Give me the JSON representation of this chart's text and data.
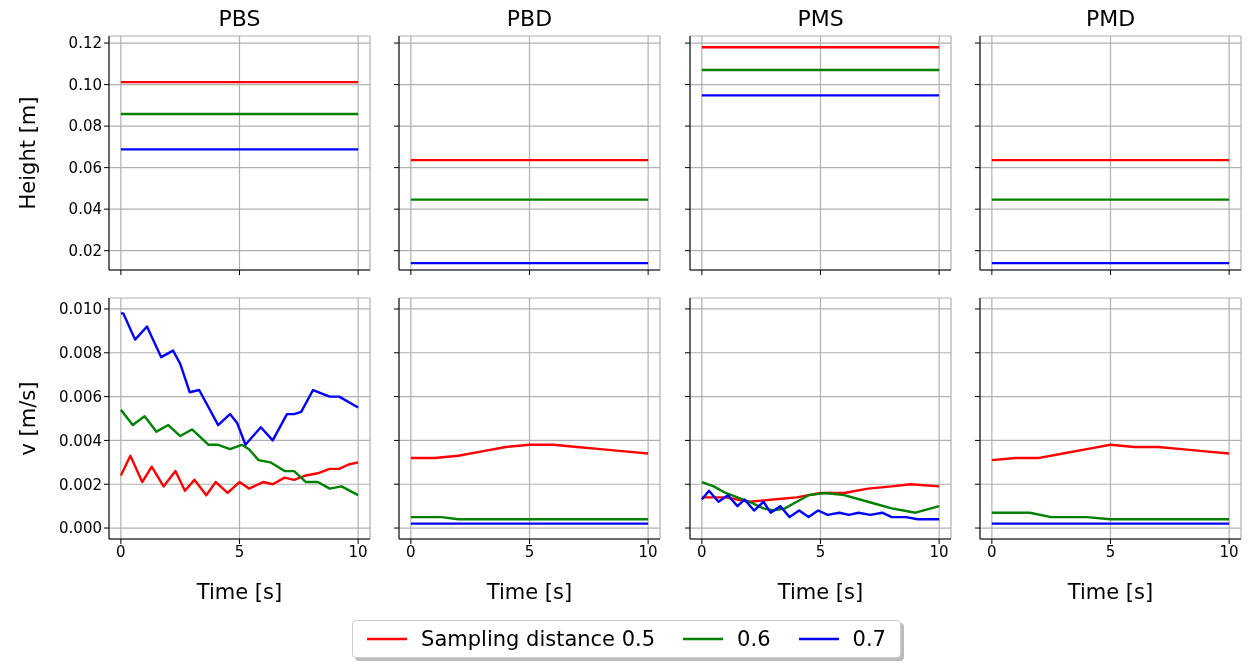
{
  "chart_data": [
    {
      "type": "line",
      "title": "PBS",
      "ylabel": "Height [m]",
      "xlim": [
        -0.5,
        10.5
      ],
      "xticks": [
        0,
        5,
        10
      ],
      "ylim": [
        0.0107,
        0.1234
      ],
      "yticks": [
        0.02,
        0.04,
        0.06,
        0.08,
        {
          "value": 0.1,
          "label": "0.10"
        },
        0.12
      ],
      "grid": true,
      "tick_labels": "y",
      "legend": "bottom",
      "series": [
        {
          "name": "Sampling distance 0.5",
          "color": "#ff0000",
          "x": [
            0,
            2.5,
            5,
            7.5,
            10
          ],
          "values": [
            0.1012,
            0.1012,
            0.1012,
            0.1012,
            0.1012
          ]
        },
        {
          "name": "0.6",
          "color": "#008000",
          "x": [
            0,
            2.5,
            5,
            7.5,
            10
          ],
          "values": [
            0.0858,
            0.0858,
            0.0858,
            0.0858,
            0.0858
          ]
        },
        {
          "name": "0.7",
          "color": "#0000ff",
          "x": [
            0,
            2.5,
            5,
            7.5,
            10
          ],
          "values": [
            0.0688,
            0.0688,
            0.0688,
            0.0688,
            0.0688
          ]
        }
      ]
    },
    {
      "type": "line",
      "title": "PBD",
      "xlim": [
        -0.5,
        10.5
      ],
      "xticks": [
        0,
        5,
        10
      ],
      "ylim": [
        0.0107,
        0.1234
      ],
      "yticks": [
        0.02,
        0.04,
        0.06,
        0.08,
        0.1,
        0.12
      ],
      "grid": true,
      "tick_labels": false,
      "series": [
        {
          "color": "#ff0000",
          "x": [
            0,
            5,
            10
          ],
          "values": [
            0.0636,
            0.0636,
            0.0636
          ]
        },
        {
          "color": "#008000",
          "x": [
            0,
            5,
            10
          ],
          "values": [
            0.0446,
            0.0446,
            0.0446
          ]
        },
        {
          "color": "#0000ff",
          "x": [
            0,
            5,
            10
          ],
          "values": [
            0.014,
            0.014,
            0.014
          ]
        }
      ]
    },
    {
      "type": "line",
      "title": "PMS",
      "xlim": [
        -0.5,
        10.5
      ],
      "xticks": [
        0,
        5,
        10
      ],
      "ylim": [
        0.0107,
        0.1234
      ],
      "yticks": [
        0.02,
        0.04,
        0.06,
        0.08,
        0.1,
        0.12
      ],
      "grid": true,
      "tick_labels": false,
      "series": [
        {
          "color": "#ff0000",
          "x": [
            0,
            5,
            10
          ],
          "values": [
            0.118,
            0.118,
            0.118
          ]
        },
        {
          "color": "#008000",
          "x": [
            0,
            5,
            10
          ],
          "values": [
            0.107,
            0.107,
            0.107
          ]
        },
        {
          "color": "#0000ff",
          "x": [
            0,
            5,
            10
          ],
          "values": [
            0.0948,
            0.0948,
            0.0948
          ]
        }
      ]
    },
    {
      "type": "line",
      "title": "PMD",
      "xlim": [
        -0.5,
        10.5
      ],
      "xticks": [
        0,
        5,
        10
      ],
      "ylim": [
        0.0107,
        0.1234
      ],
      "yticks": [
        0.02,
        0.04,
        0.06,
        0.08,
        0.1,
        0.12
      ],
      "grid": true,
      "tick_labels": false,
      "series": [
        {
          "color": "#ff0000",
          "x": [
            0,
            5,
            10
          ],
          "values": [
            0.0636,
            0.0636,
            0.0636
          ]
        },
        {
          "color": "#008000",
          "x": [
            0,
            5,
            10
          ],
          "values": [
            0.0446,
            0.0446,
            0.0446
          ]
        },
        {
          "color": "#0000ff",
          "x": [
            0,
            5,
            10
          ],
          "values": [
            0.014,
            0.014,
            0.014
          ]
        }
      ]
    },
    {
      "type": "line",
      "xlabel": "Time [s]",
      "ylabel": "v [m/s]",
      "xlim": [
        -0.5,
        10.5
      ],
      "xticks": [
        0,
        5,
        10
      ],
      "ylim": [
        -0.0005,
        0.0105
      ],
      "yticks": [
        {
          "value": 0,
          "label": "0.000"
        },
        0.002,
        0.004,
        0.006,
        0.008,
        {
          "value": 0.01,
          "label": "0.010"
        }
      ],
      "grid": true,
      "series": [
        {
          "color": "#ff0000",
          "x": [
            0,
            0.4,
            0.9,
            1.3,
            1.8,
            2.3,
            2.7,
            3.1,
            3.6,
            4.0,
            4.5,
            5.0,
            5.4,
            6.0,
            6.4,
            6.9,
            7.3,
            7.8,
            8.3,
            8.8,
            9.2,
            9.6,
            10
          ],
          "values": [
            0.0024,
            0.0033,
            0.0021,
            0.0028,
            0.0019,
            0.0026,
            0.0017,
            0.0022,
            0.0015,
            0.0021,
            0.0016,
            0.0021,
            0.0018,
            0.0021,
            0.002,
            0.0023,
            0.0022,
            0.0024,
            0.0025,
            0.0027,
            0.0027,
            0.0029,
            0.003
          ]
        },
        {
          "color": "#008000",
          "x": [
            0,
            0.5,
            1.0,
            1.5,
            2.0,
            2.5,
            3.0,
            3.7,
            4.1,
            4.6,
            5.1,
            5.4,
            5.8,
            6.3,
            6.9,
            7.3,
            7.8,
            8.3,
            8.8,
            9.3,
            10
          ],
          "values": [
            0.0054,
            0.0047,
            0.0051,
            0.0044,
            0.0047,
            0.0042,
            0.0045,
            0.0038,
            0.0038,
            0.0036,
            0.0038,
            0.0036,
            0.0031,
            0.003,
            0.0026,
            0.0026,
            0.0021,
            0.0021,
            0.0018,
            0.0019,
            0.0015
          ]
        },
        {
          "color": "#0000ff",
          "x": [
            0,
            0.1,
            0.6,
            1.1,
            1.7,
            2.2,
            2.5,
            2.9,
            3.3,
            3.7,
            4.1,
            4.6,
            4.9,
            5.25,
            5.9,
            6.4,
            7.0,
            7.3,
            7.6,
            8.1,
            8.8,
            9.2,
            10
          ],
          "values": [
            0.0098,
            0.0098,
            0.0086,
            0.0092,
            0.0078,
            0.0081,
            0.0075,
            0.0062,
            0.0063,
            0.0055,
            0.0047,
            0.0052,
            0.0048,
            0.0038,
            0.0046,
            0.004,
            0.0052,
            0.0052,
            0.0053,
            0.0063,
            0.006,
            0.006,
            0.0055
          ]
        }
      ]
    },
    {
      "type": "line",
      "xlabel": "Time [s]",
      "xlim": [
        -0.5,
        10.5
      ],
      "xticks": [
        0,
        5,
        10
      ],
      "ylim": [
        -0.0005,
        0.0105
      ],
      "yticks": [
        0,
        0.002,
        0.004,
        0.006,
        0.008,
        0.01
      ],
      "grid": true,
      "tick_labels": "x",
      "series": [
        {
          "color": "#ff0000",
          "x": [
            0,
            1,
            2,
            3,
            4,
            5,
            6,
            7,
            8,
            9,
            10
          ],
          "values": [
            0.0032,
            0.0032,
            0.0033,
            0.0035,
            0.0037,
            0.0038,
            0.0038,
            0.0037,
            0.0036,
            0.0035,
            0.0034
          ]
        },
        {
          "color": "#008000",
          "x": [
            0,
            1.3,
            2,
            5,
            8,
            10
          ],
          "values": [
            0.0005,
            0.0005,
            0.0004,
            0.0004,
            0.0004,
            0.0004
          ]
        },
        {
          "color": "#0000ff",
          "x": [
            0,
            5,
            9,
            10
          ],
          "values": [
            0.0002,
            0.0002,
            0.0002,
            0.0002
          ]
        }
      ]
    },
    {
      "type": "line",
      "xlabel": "Time [s]",
      "xlim": [
        -0.5,
        10.5
      ],
      "xticks": [
        0,
        5,
        10
      ],
      "ylim": [
        -0.0005,
        0.0105
      ],
      "yticks": [
        0,
        0.002,
        0.004,
        0.006,
        0.008,
        0.01
      ],
      "grid": true,
      "tick_labels": "x",
      "series": [
        {
          "color": "#ff0000",
          "x": [
            0,
            0.5,
            1,
            2,
            3,
            4,
            5,
            6,
            7,
            8,
            8.8,
            10
          ],
          "values": [
            0.0014,
            0.0014,
            0.0014,
            0.0012,
            0.0013,
            0.0014,
            0.0016,
            0.0016,
            0.0018,
            0.0019,
            0.002,
            0.0019
          ]
        },
        {
          "color": "#008000",
          "x": [
            0,
            0.5,
            1,
            2,
            2.6,
            3,
            3.5,
            4,
            4.5,
            5.2,
            6,
            7,
            8,
            9,
            10
          ],
          "values": [
            0.0021,
            0.0019,
            0.0016,
            0.0012,
            0.0009,
            0.0008,
            0.0009,
            0.0012,
            0.0015,
            0.0016,
            0.0015,
            0.0012,
            0.0009,
            0.0007,
            0.001
          ]
        },
        {
          "color": "#0000ff",
          "x": [
            0,
            0.3,
            0.7,
            1.1,
            1.5,
            1.8,
            2.2,
            2.6,
            2.9,
            3.3,
            3.7,
            4.1,
            4.5,
            4.9,
            5.3,
            5.8,
            6.2,
            6.6,
            7.1,
            7.6,
            8,
            8.6,
            9.1,
            10
          ],
          "values": [
            0.0013,
            0.0017,
            0.0012,
            0.0015,
            0.001,
            0.0013,
            0.0008,
            0.0012,
            0.0007,
            0.001,
            0.0005,
            0.0008,
            0.0005,
            0.0008,
            0.0006,
            0.0007,
            0.0006,
            0.0007,
            0.0006,
            0.0007,
            0.0005,
            0.0005,
            0.0004,
            0.0004
          ]
        }
      ]
    },
    {
      "type": "line",
      "xlabel": "Time [s]",
      "xlim": [
        -0.5,
        10.5
      ],
      "xticks": [
        0,
        5,
        10
      ],
      "ylim": [
        -0.0005,
        0.0105
      ],
      "yticks": [
        0,
        0.002,
        0.004,
        0.006,
        0.008,
        0.01
      ],
      "grid": true,
      "tick_labels": "x",
      "series": [
        {
          "color": "#ff0000",
          "x": [
            0,
            1,
            2,
            3,
            4,
            5,
            6,
            7,
            8,
            9,
            10
          ],
          "values": [
            0.0031,
            0.0032,
            0.0032,
            0.0034,
            0.0036,
            0.0038,
            0.0037,
            0.0037,
            0.0036,
            0.0035,
            0.0034
          ]
        },
        {
          "color": "#008000",
          "x": [
            0,
            1,
            1.6,
            2.5,
            4,
            5,
            7,
            9,
            10
          ],
          "values": [
            0.0007,
            0.0007,
            0.0007,
            0.0005,
            0.0005,
            0.0004,
            0.0004,
            0.0004,
            0.0004
          ]
        },
        {
          "color": "#0000ff",
          "x": [
            0,
            5,
            9,
            10
          ],
          "values": [
            0.0002,
            0.0002,
            0.0002,
            0.0002
          ]
        }
      ]
    }
  ]
}
